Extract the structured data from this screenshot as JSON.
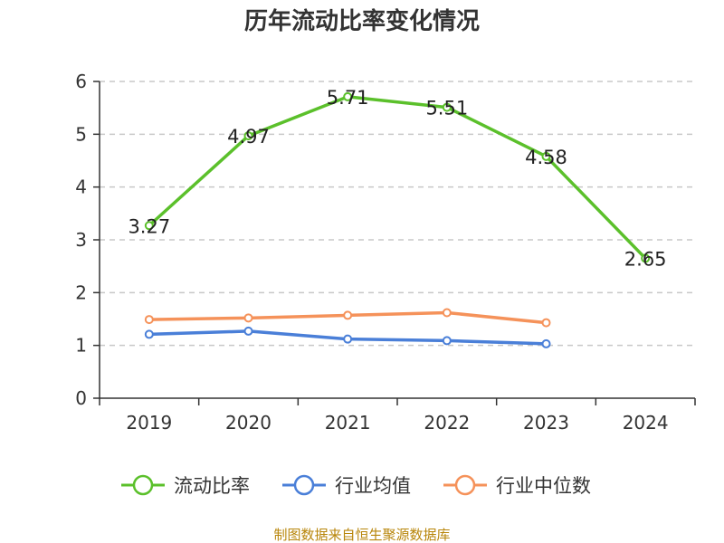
{
  "chart_data": {
    "type": "line",
    "title": "历年流动比率变化情况",
    "categories": [
      "2019",
      "2020",
      "2021",
      "2022",
      "2023",
      "2024"
    ],
    "ylim": [
      0,
      6
    ],
    "yticks": [
      0,
      1,
      2,
      3,
      4,
      5,
      6
    ],
    "grid": true,
    "legend_position": "bottom",
    "series": [
      {
        "name": "流动比率",
        "color": "#5bc02b",
        "values": [
          3.27,
          4.97,
          5.71,
          5.51,
          4.58,
          2.65
        ],
        "labels": [
          "3.27",
          "4.97",
          "5.71",
          "5.51",
          "4.58",
          "2.65"
        ]
      },
      {
        "name": "行业均值",
        "color": "#4a7fd8",
        "values": [
          1.21,
          1.27,
          1.12,
          1.09,
          1.03,
          null
        ]
      },
      {
        "name": "行业中位数",
        "color": "#f5925a",
        "values": [
          1.49,
          1.52,
          1.57,
          1.62,
          1.43,
          null
        ]
      }
    ]
  },
  "source_text": "制图数据来自恒生聚源数据库"
}
